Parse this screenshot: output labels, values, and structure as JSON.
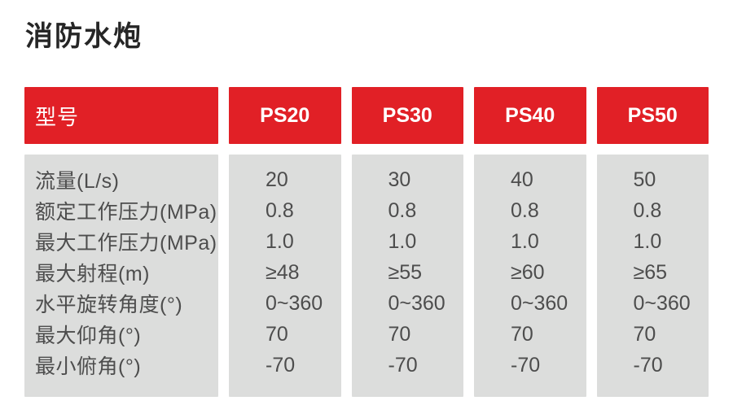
{
  "page": {
    "title": "消防水炮"
  },
  "table": {
    "header": {
      "first_col": "型号",
      "models": [
        "PS20",
        "PS30",
        "PS40",
        "PS50"
      ]
    },
    "rows": [
      {
        "label": "流量(L/s)",
        "values": [
          "20",
          "30",
          "40",
          "50"
        ]
      },
      {
        "label": "额定工作压力(MPa)",
        "values": [
          "0.8",
          "0.8",
          "0.8",
          "0.8"
        ]
      },
      {
        "label": "最大工作压力(MPa)",
        "values": [
          "1.0",
          "1.0",
          "1.0",
          "1.0"
        ]
      },
      {
        "label": "最大射程(m)",
        "values": [
          "≥48",
          "≥55",
          "≥60",
          "≥65"
        ]
      },
      {
        "label": "水平旋转角度(°)",
        "values": [
          "0~360",
          "0~360",
          "0~360",
          "0~360"
        ]
      },
      {
        "label": "最大仰角(°)",
        "values": [
          "70",
          "70",
          "70",
          "70"
        ]
      },
      {
        "label": "最小俯角(°)",
        "values": [
          "-70",
          "-70",
          "-70",
          "-70"
        ]
      }
    ],
    "colors": {
      "header_bg": "#e12026",
      "header_text": "#ffffff",
      "body_bg": "#dcdddc",
      "body_text": "#4d4d4d"
    }
  }
}
